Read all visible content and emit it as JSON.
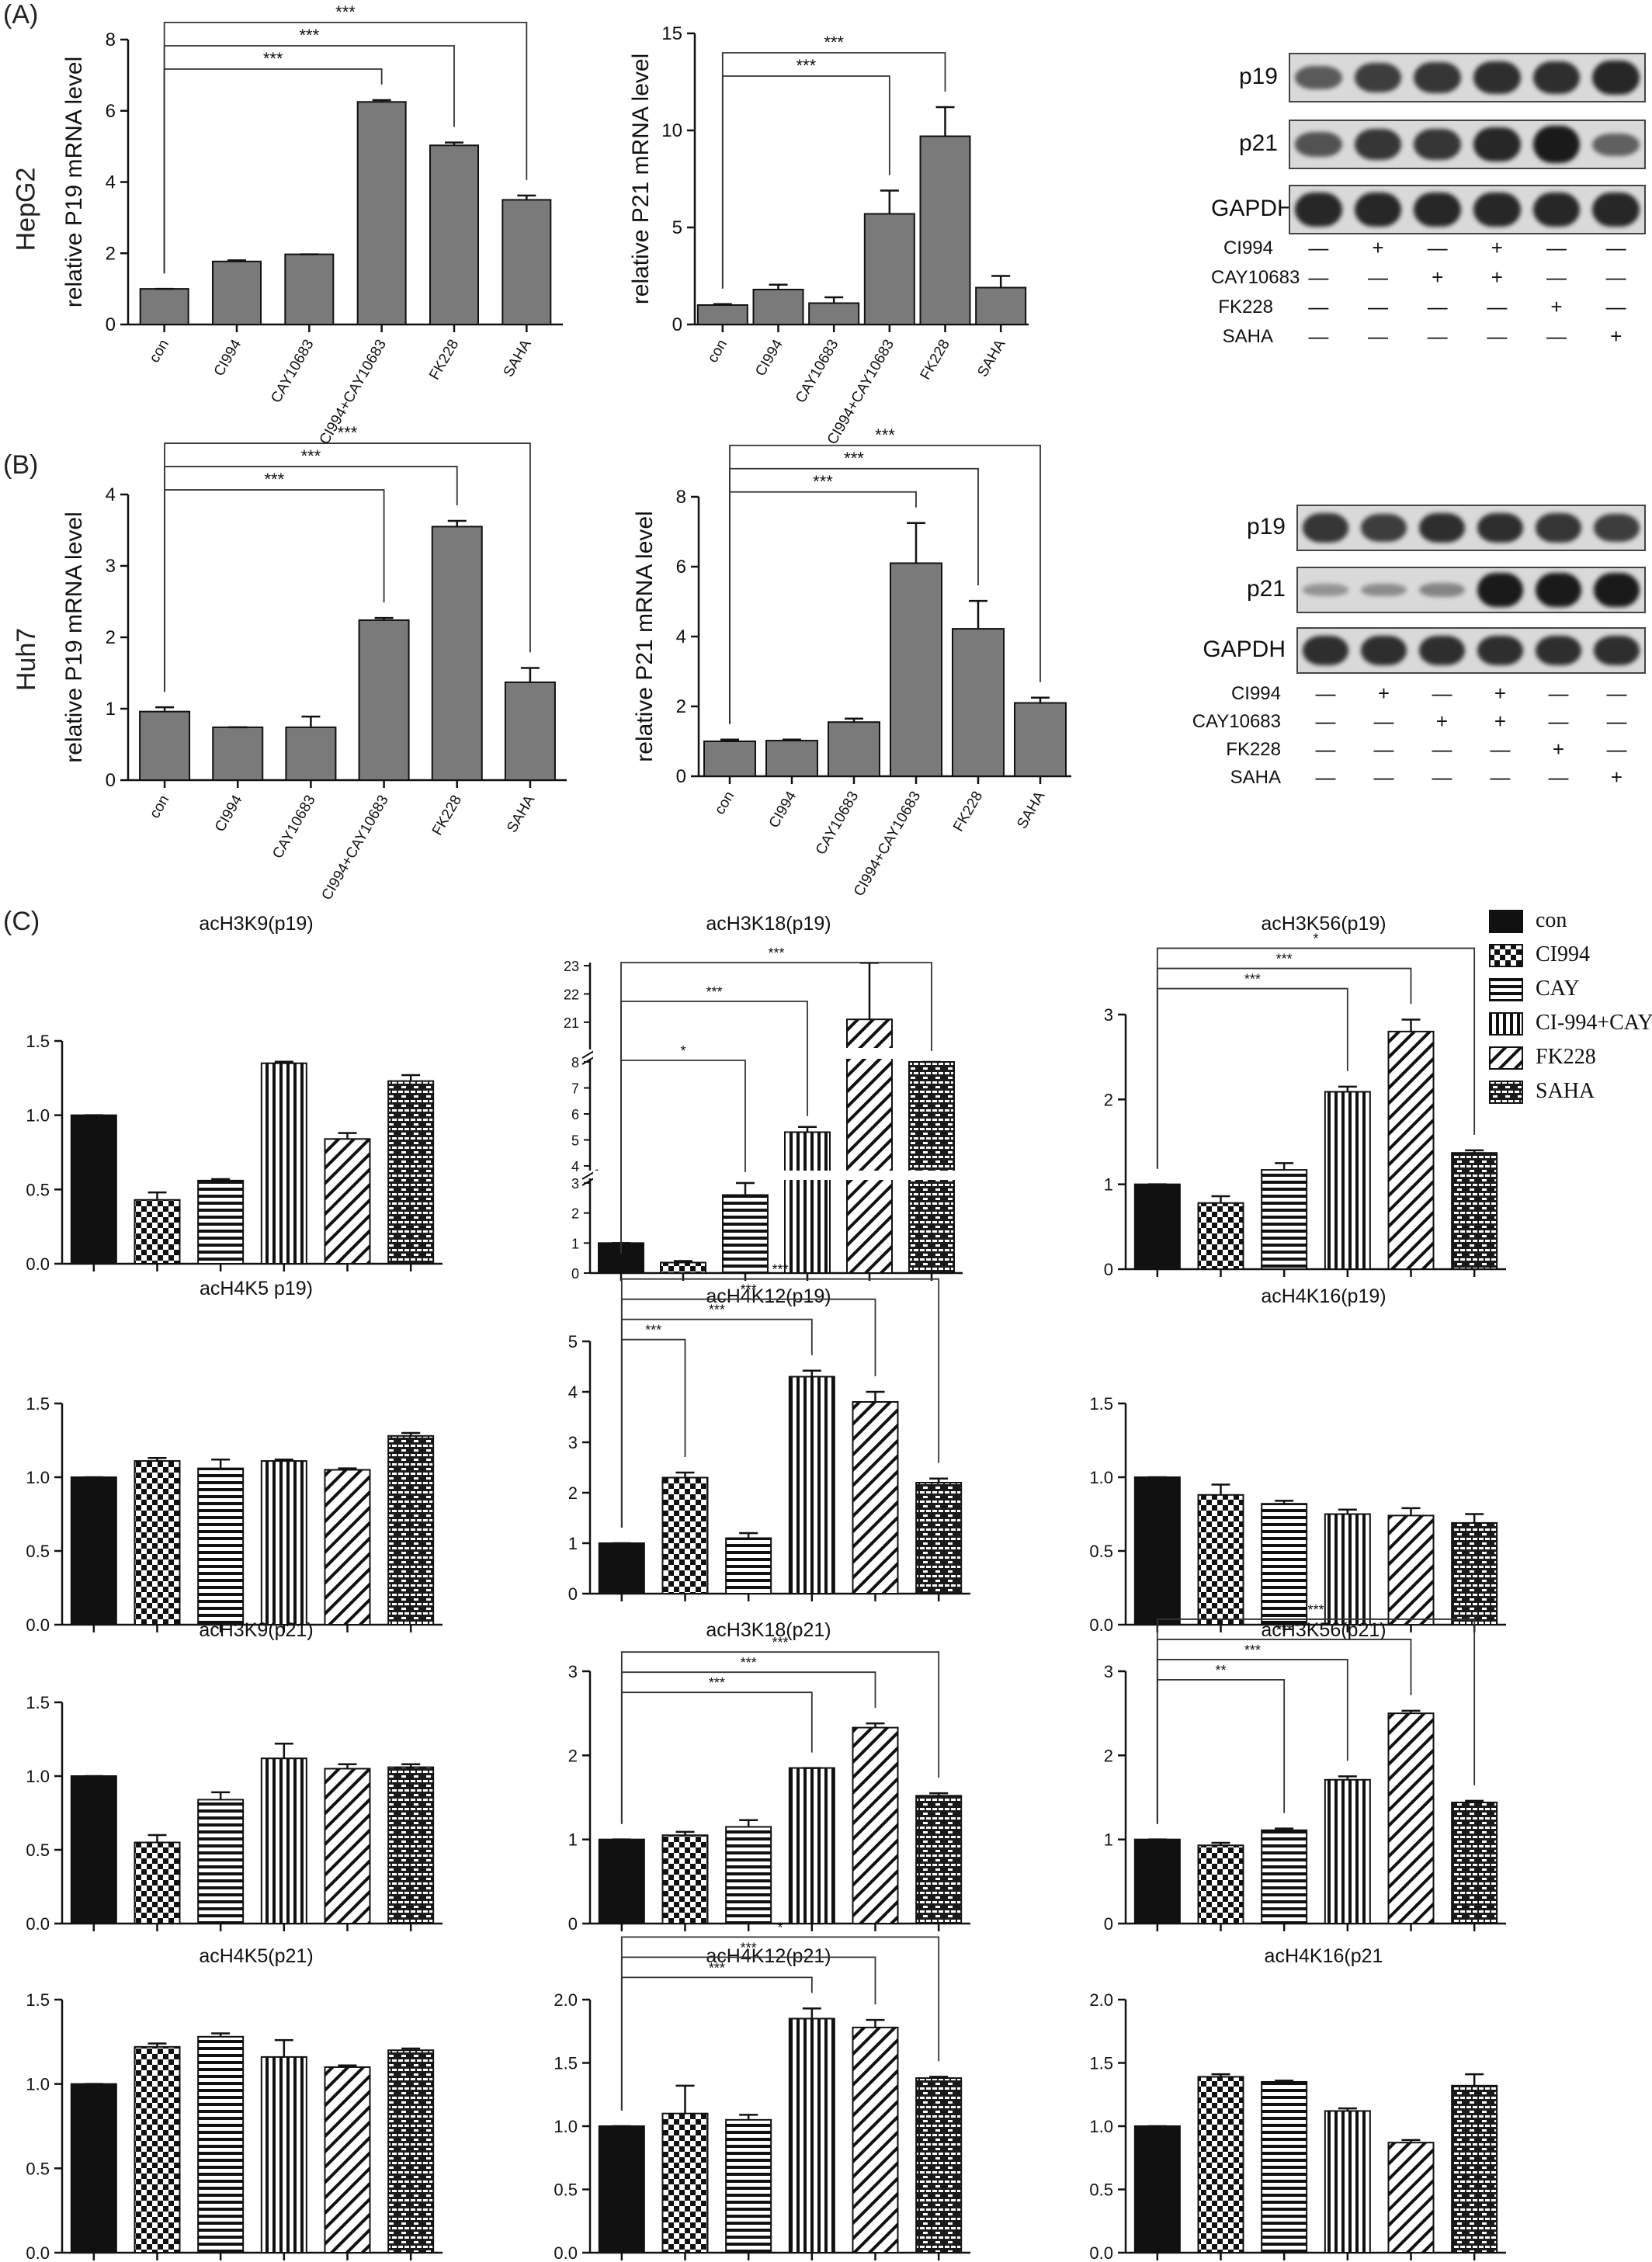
{
  "panel_labels": {
    "a": "(A)",
    "b": "(B)",
    "c": "(C)"
  },
  "row_labels": {
    "a": "HepG2",
    "b": "Huh7"
  },
  "blot_a": {
    "rows": [
      "p19",
      "p21",
      "GAPDH"
    ],
    "treatments": [
      {
        "label": "CI994",
        "signs": [
          "—",
          "+",
          "—",
          "+",
          "—",
          "—"
        ]
      },
      {
        "label": "CAY10683",
        "signs": [
          "—",
          "—",
          "+",
          "+",
          "—",
          "—"
        ]
      },
      {
        "label": "FK228",
        "signs": [
          "—",
          "—",
          "—",
          "—",
          "+",
          "—"
        ]
      },
      {
        "label": "SAHA",
        "signs": [
          "—",
          "—",
          "—",
          "—",
          "—",
          "+"
        ]
      }
    ],
    "band_intensity": {
      "p19": [
        0.55,
        0.75,
        0.8,
        0.85,
        0.85,
        0.9
      ],
      "p21": [
        0.6,
        0.8,
        0.8,
        0.9,
        1.0,
        0.5
      ],
      "GAPDH": [
        0.9,
        0.9,
        0.9,
        0.9,
        0.9,
        0.9
      ]
    }
  },
  "blot_b": {
    "rows": [
      "p19",
      "p21",
      "GAPDH"
    ],
    "treatments": [
      {
        "label": "CI994",
        "signs": [
          "—",
          "+",
          "—",
          "+",
          "—",
          "—"
        ]
      },
      {
        "label": "CAY10683",
        "signs": [
          "—",
          "—",
          "+",
          "+",
          "—",
          "—"
        ]
      },
      {
        "label": "FK228",
        "signs": [
          "—",
          "—",
          "—",
          "—",
          "+",
          "—"
        ]
      },
      {
        "label": "SAHA",
        "signs": [
          "—",
          "—",
          "—",
          "—",
          "—",
          "+"
        ]
      }
    ],
    "band_intensity": {
      "p19": [
        0.8,
        0.75,
        0.85,
        0.85,
        0.8,
        0.75
      ],
      "p21": [
        0.15,
        0.2,
        0.25,
        1.0,
        1.0,
        1.0
      ],
      "GAPDH": [
        0.85,
        0.85,
        0.85,
        0.85,
        0.85,
        0.85
      ]
    }
  },
  "legend": {
    "entries": [
      {
        "label": "con",
        "pattern": "solid"
      },
      {
        "label": "CI994",
        "pattern": "checker"
      },
      {
        "label": "CAY",
        "pattern": "hstripe"
      },
      {
        "label": "CI-994+CAY",
        "pattern": "vstripe"
      },
      {
        "label": "FK228",
        "pattern": "diag"
      },
      {
        "label": "SAHA",
        "pattern": "brick"
      }
    ]
  },
  "chart_data": [
    {
      "id": "a1",
      "type": "bar",
      "ylabel": "relative P19 mRNA level",
      "ylim": [
        0,
        8
      ],
      "yticks": [
        0,
        2,
        4,
        6,
        8
      ],
      "categories": [
        "con",
        "CI994",
        "CAY10683",
        "CI994+CAY10683",
        "FK228",
        "SAHA"
      ],
      "values": [
        1.0,
        1.77,
        1.97,
        6.25,
        5.03,
        3.5
      ],
      "errors": [
        0,
        0.03,
        0,
        0.05,
        0.08,
        0.12
      ],
      "sig": [
        {
          "from": 0,
          "to": 3,
          "label": "***"
        },
        {
          "from": 0,
          "to": 4,
          "label": "***"
        },
        {
          "from": 0,
          "to": 5,
          "label": "***"
        }
      ]
    },
    {
      "id": "a2",
      "type": "bar",
      "ylabel": "relative P21 mRNA level",
      "ylim": [
        0,
        15
      ],
      "yticks": [
        0,
        5,
        10,
        15
      ],
      "categories": [
        "con",
        "CI994",
        "CAY10683",
        "CI994+CAY10683",
        "FK228",
        "SAHA"
      ],
      "values": [
        1.0,
        1.8,
        1.1,
        5.7,
        9.7,
        1.9
      ],
      "errors": [
        0.05,
        0.25,
        0.3,
        1.2,
        1.5,
        0.6
      ],
      "sig": [
        {
          "from": 0,
          "to": 3,
          "label": "***"
        },
        {
          "from": 0,
          "to": 4,
          "label": "***"
        }
      ]
    },
    {
      "id": "b1",
      "type": "bar",
      "ylabel": "relative P19 mRNA level",
      "ylim": [
        0,
        4
      ],
      "yticks": [
        0,
        1,
        2,
        3,
        4
      ],
      "categories": [
        "con",
        "CI994",
        "CAY10683",
        "CI994+CAY10683",
        "FK228",
        "SAHA"
      ],
      "values": [
        0.96,
        0.74,
        0.74,
        2.24,
        3.55,
        1.37
      ],
      "errors": [
        0.06,
        0,
        0.15,
        0.03,
        0.08,
        0.2
      ],
      "sig": [
        {
          "from": 0,
          "to": 3,
          "label": "***"
        },
        {
          "from": 0,
          "to": 4,
          "label": "***"
        },
        {
          "from": 0,
          "to": 5,
          "label": "***"
        }
      ]
    },
    {
      "id": "b2",
      "type": "bar",
      "ylabel": "relative P21 mRNA level",
      "ylim": [
        0,
        8
      ],
      "yticks": [
        0,
        2,
        4,
        6,
        8
      ],
      "categories": [
        "con",
        "CI994",
        "CAY10683",
        "CI994+CAY10683",
        "FK228",
        "SAHA"
      ],
      "values": [
        1.0,
        1.02,
        1.55,
        6.1,
        4.22,
        2.1
      ],
      "errors": [
        0.05,
        0.03,
        0.1,
        1.15,
        0.8,
        0.15
      ],
      "sig": [
        {
          "from": 0,
          "to": 3,
          "label": "***"
        },
        {
          "from": 0,
          "to": 4,
          "label": "***"
        },
        {
          "from": 0,
          "to": 5,
          "label": "***"
        }
      ]
    },
    {
      "id": "c1",
      "type": "bar",
      "title": "acH3K9(p19)",
      "ylim": [
        0,
        1.5
      ],
      "yticks": [
        0.0,
        0.5,
        1.0,
        1.5
      ],
      "values": [
        1.0,
        0.43,
        0.56,
        1.35,
        0.84,
        1.23
      ],
      "errors": [
        0,
        0.05,
        0.01,
        0.01,
        0.04,
        0.04
      ],
      "sig": []
    },
    {
      "id": "c2",
      "type": "bar",
      "title": "acH3K18(p19)",
      "broken_axis": true,
      "yticks_lower": [
        0,
        1,
        2,
        3
      ],
      "yticks_mid": [
        4,
        5,
        6,
        7,
        8
      ],
      "yticks_upper": [
        21,
        22,
        23
      ],
      "values": [
        1.0,
        0.35,
        2.6,
        5.3,
        21.1,
        8.0
      ],
      "errors": [
        0,
        0.05,
        0.4,
        0.2,
        2.0,
        0
      ],
      "sig": [
        {
          "from": 0,
          "to": 2,
          "label": "*"
        },
        {
          "from": 0,
          "to": 3,
          "label": "***"
        },
        {
          "from": 0,
          "to": 5,
          "label": "***"
        }
      ]
    },
    {
      "id": "c3",
      "type": "bar",
      "title": "acH3K56(p19)",
      "ylim": [
        0,
        3
      ],
      "yticks": [
        0,
        1,
        2,
        3
      ],
      "values": [
        1.0,
        0.78,
        1.17,
        2.09,
        2.8,
        1.37
      ],
      "errors": [
        0,
        0.08,
        0.08,
        0.06,
        0.14,
        0.03
      ],
      "sig": [
        {
          "from": 0,
          "to": 3,
          "label": "***"
        },
        {
          "from": 0,
          "to": 4,
          "label": "***"
        },
        {
          "from": 0,
          "to": 5,
          "label": "*"
        }
      ]
    },
    {
      "id": "c4",
      "type": "bar",
      "title": "acH4K5 p19)",
      "ylim": [
        0,
        1.5
      ],
      "yticks": [
        0.0,
        0.5,
        1.0,
        1.5
      ],
      "values": [
        1.0,
        1.11,
        1.06,
        1.11,
        1.05,
        1.28
      ],
      "errors": [
        0,
        0.02,
        0.06,
        0.01,
        0.01,
        0.02
      ],
      "sig": []
    },
    {
      "id": "c5",
      "type": "bar",
      "title": "acH4K12(p19)",
      "ylim": [
        0,
        5
      ],
      "yticks": [
        0,
        1,
        2,
        3,
        4,
        5
      ],
      "values": [
        1.0,
        2.3,
        1.1,
        4.3,
        3.8,
        2.2
      ],
      "errors": [
        0,
        0.1,
        0.1,
        0.12,
        0.2,
        0.08
      ],
      "sig": [
        {
          "from": 0,
          "to": 1,
          "label": "***"
        },
        {
          "from": 0,
          "to": 3,
          "label": "***"
        },
        {
          "from": 0,
          "to": 4,
          "label": "***"
        },
        {
          "from": 0,
          "to": 5,
          "label": "***"
        }
      ]
    },
    {
      "id": "c6",
      "type": "bar",
      "title": "acH4K16(p19)",
      "ylim": [
        0,
        1.5
      ],
      "yticks": [
        0.0,
        0.5,
        1.0,
        1.5
      ],
      "values": [
        1.0,
        0.88,
        0.82,
        0.75,
        0.74,
        0.69
      ],
      "errors": [
        0,
        0.07,
        0.02,
        0.03,
        0.05,
        0.06
      ],
      "sig": []
    },
    {
      "id": "c7",
      "type": "bar",
      "title": "acH3K9(p21)",
      "ylim": [
        0,
        1.5
      ],
      "yticks": [
        0.0,
        0.5,
        1.0,
        1.5
      ],
      "values": [
        1.0,
        0.55,
        0.84,
        1.12,
        1.05,
        1.06
      ],
      "errors": [
        0,
        0.05,
        0.05,
        0.1,
        0.03,
        0.02
      ],
      "sig": []
    },
    {
      "id": "c8",
      "type": "bar",
      "title": "acH3K18(p21)",
      "ylim": [
        0,
        3
      ],
      "yticks": [
        0,
        1,
        2,
        3
      ],
      "values": [
        1.0,
        1.05,
        1.15,
        1.85,
        2.33,
        1.52
      ],
      "errors": [
        0,
        0.04,
        0.08,
        0,
        0.05,
        0.03
      ],
      "sig": [
        {
          "from": 0,
          "to": 3,
          "label": "***"
        },
        {
          "from": 0,
          "to": 4,
          "label": "***"
        },
        {
          "from": 0,
          "to": 5,
          "label": "***"
        }
      ]
    },
    {
      "id": "c9",
      "type": "bar",
      "title": "acH3K56(p21)",
      "ylim": [
        0,
        3
      ],
      "yticks": [
        0,
        1,
        2,
        3
      ],
      "values": [
        1.0,
        0.93,
        1.11,
        1.71,
        2.5,
        1.44
      ],
      "errors": [
        0,
        0.03,
        0.02,
        0.04,
        0.03,
        0.02
      ],
      "sig": [
        {
          "from": 0,
          "to": 2,
          "label": "**"
        },
        {
          "from": 0,
          "to": 3,
          "label": "***"
        },
        {
          "from": 0,
          "to": 4,
          "label": "***"
        },
        {
          "from": 0,
          "to": 5,
          "label": "***"
        }
      ]
    },
    {
      "id": "c10",
      "type": "bar",
      "title": "acH4K5(p21)",
      "ylim": [
        0,
        1.5
      ],
      "yticks": [
        0.0,
        0.5,
        1.0,
        1.5
      ],
      "values": [
        1.0,
        1.22,
        1.28,
        1.16,
        1.1,
        1.2
      ],
      "errors": [
        0,
        0.02,
        0.02,
        0.1,
        0.01,
        0.01
      ],
      "sig": []
    },
    {
      "id": "c11",
      "type": "bar",
      "title": "acH4K12(p21)",
      "ylim": [
        0,
        2.0
      ],
      "yticks": [
        0.0,
        0.5,
        1.0,
        1.5,
        2.0
      ],
      "values": [
        1.0,
        1.1,
        1.05,
        1.85,
        1.78,
        1.38
      ],
      "errors": [
        0,
        0.22,
        0.04,
        0.08,
        0.06,
        0.01
      ],
      "sig": [
        {
          "from": 0,
          "to": 3,
          "label": "***"
        },
        {
          "from": 0,
          "to": 4,
          "label": "***"
        },
        {
          "from": 0,
          "to": 5,
          "label": "*"
        }
      ]
    },
    {
      "id": "c12",
      "type": "bar",
      "title": "acH4K16(p21",
      "ylim": [
        0,
        2.0
      ],
      "yticks": [
        0.0,
        0.5,
        1.0,
        1.5,
        2.0
      ],
      "values": [
        1.0,
        1.39,
        1.35,
        1.12,
        0.87,
        1.32
      ],
      "errors": [
        0,
        0.02,
        0.01,
        0.02,
        0.02,
        0.09
      ],
      "sig": []
    }
  ]
}
